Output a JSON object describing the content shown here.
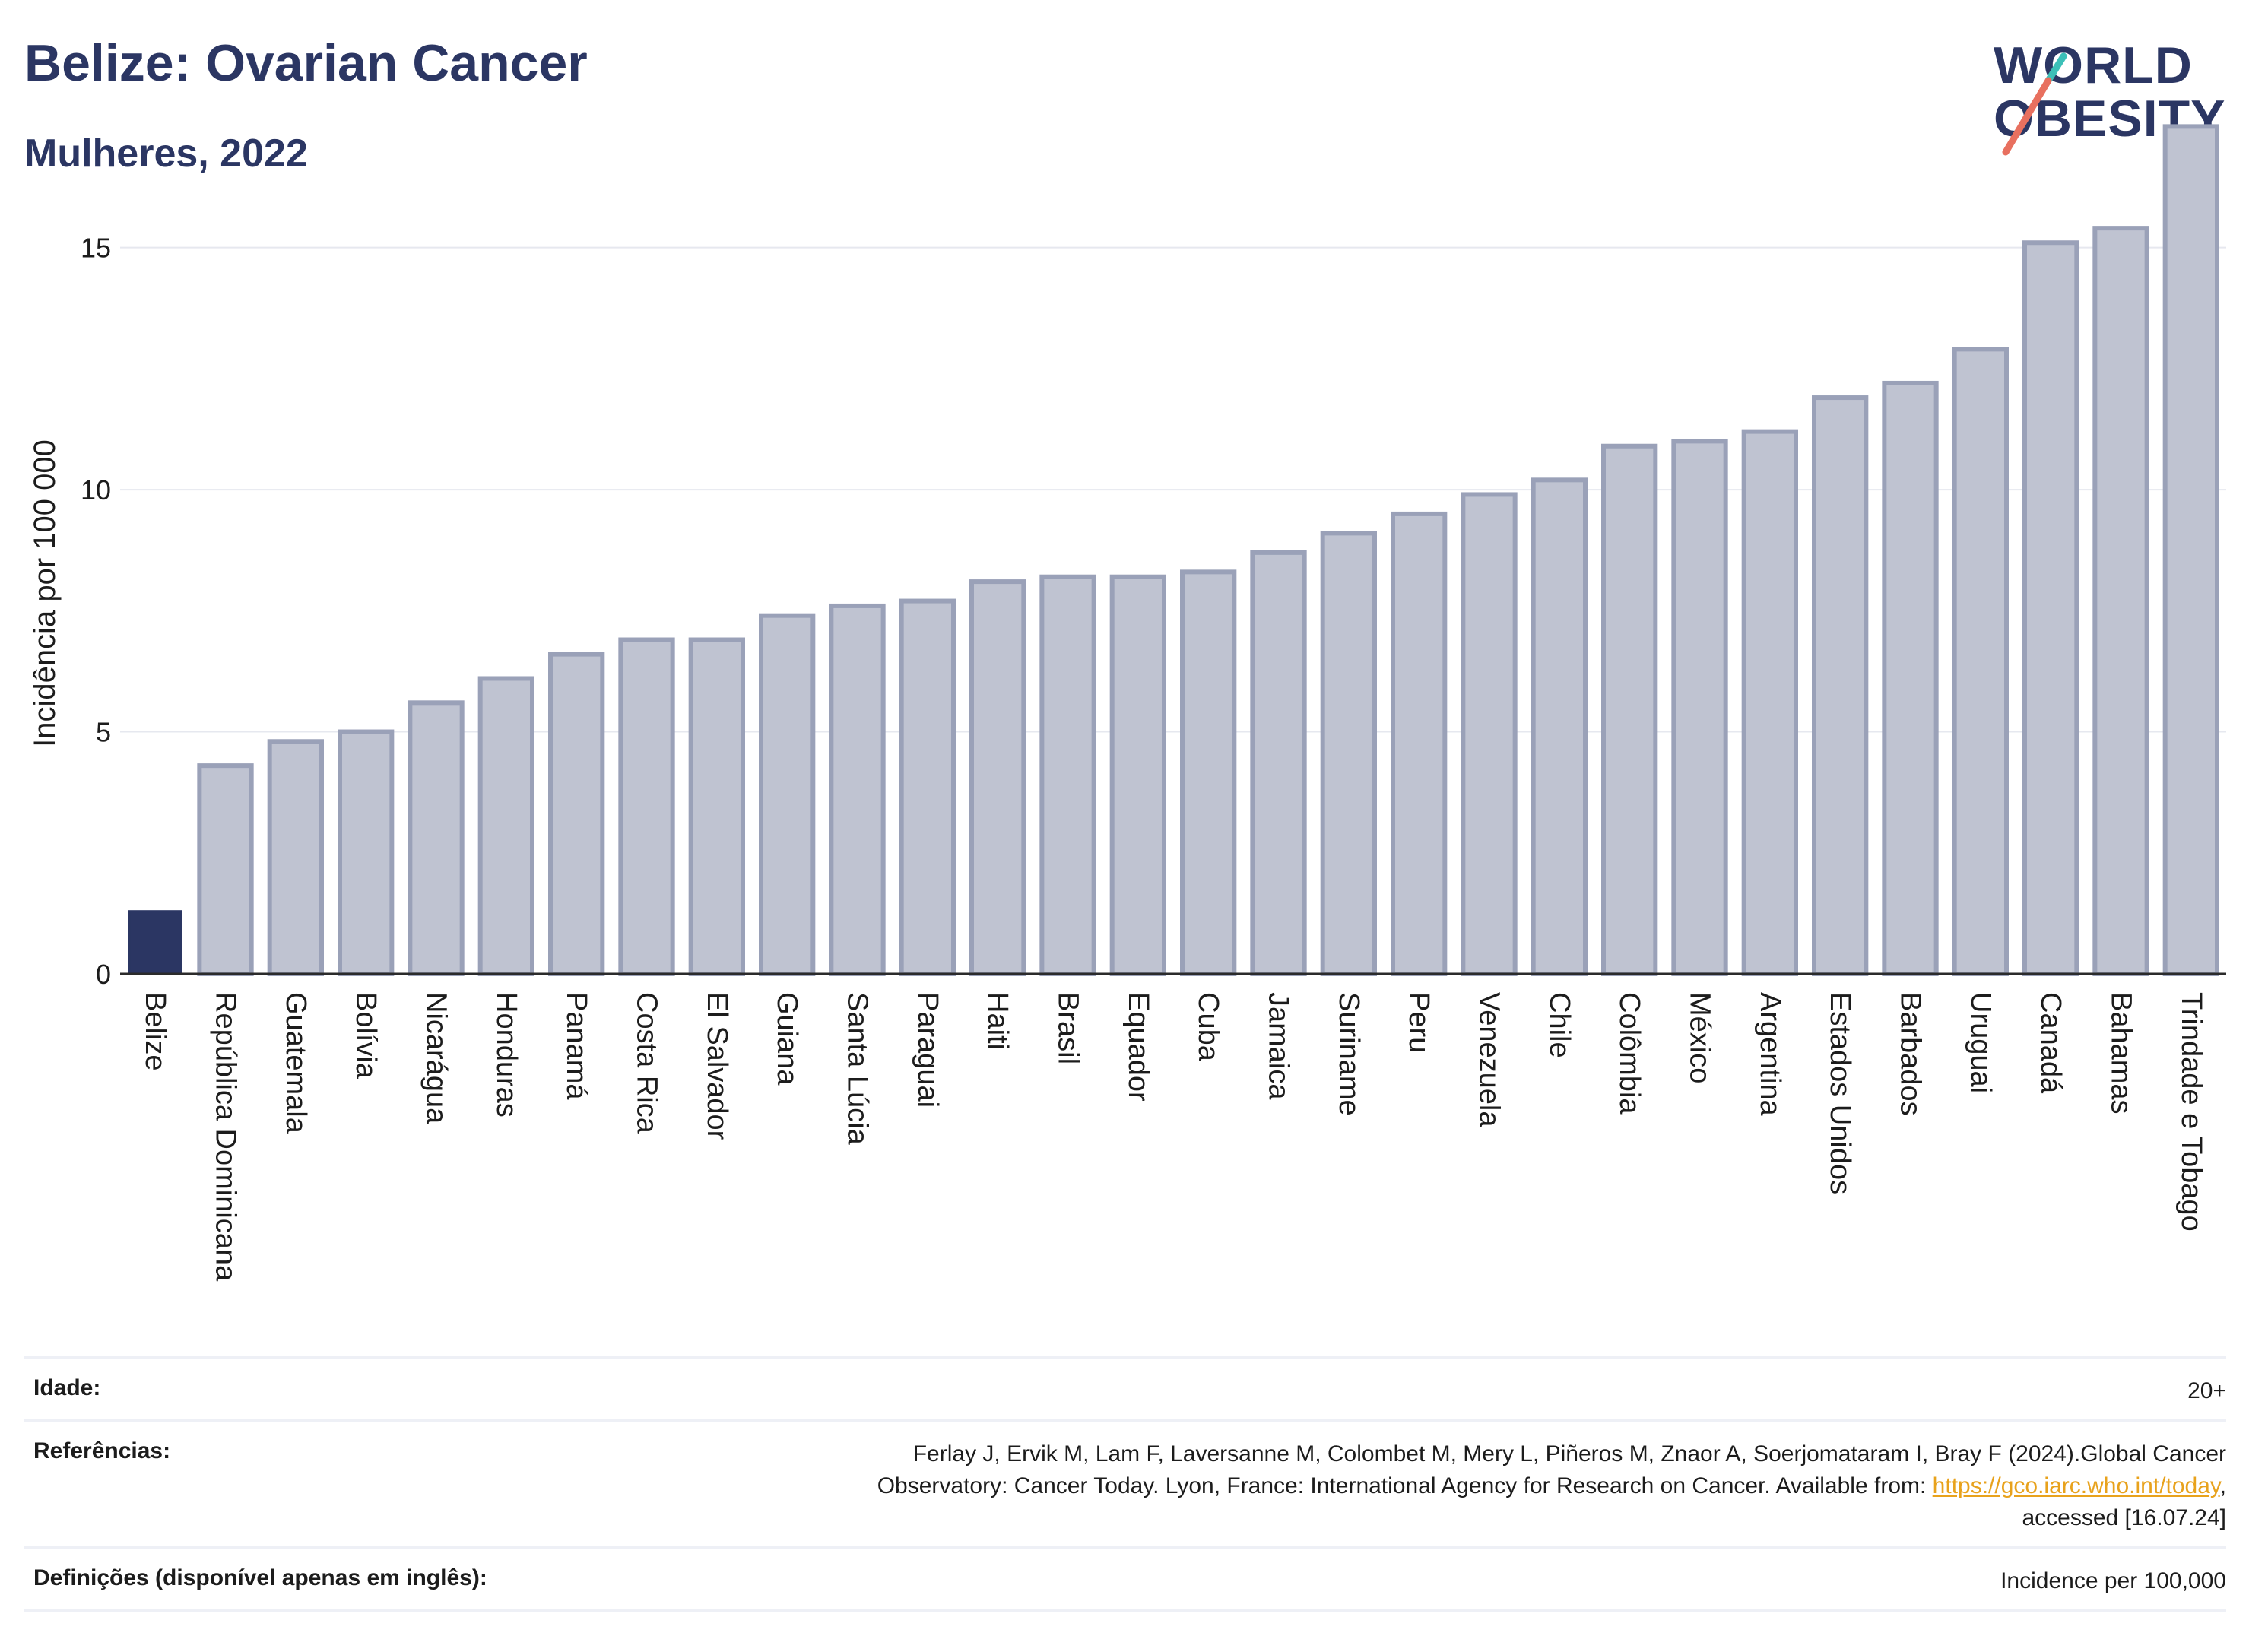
{
  "header": {
    "title": "Belize: Ovarian Cancer",
    "subtitle": "Mulheres, 2022",
    "logo_line1": "WORLD",
    "logo_line2": "OBESITY"
  },
  "colors": {
    "highlight_bar": "#2b3663",
    "other_bar": "#bfc3d1",
    "other_bar_stroke": "#9aa1b8",
    "title": "#2b3663",
    "logo_teal": "#3cc0b8",
    "logo_coral": "#e8705f"
  },
  "chart_data": {
    "type": "bar",
    "title": "",
    "xlabel": "",
    "ylabel": "Incidência por 100 000",
    "ylim": [
      0,
      17.6
    ],
    "yticks": [
      0,
      5,
      10,
      15
    ],
    "grid": true,
    "highlight": "Belize",
    "categories": [
      "Belize",
      "República Dominicana",
      "Guatemala",
      "Bolívia",
      "Nicarágua",
      "Honduras",
      "Panamá",
      "Costa Rica",
      "El Salvador",
      "Guiana",
      "Santa Lúcia",
      "Paraguai",
      "Haiti",
      "Brasil",
      "Equador",
      "Cuba",
      "Jamaica",
      "Suriname",
      "Peru",
      "Venezuela",
      "Chile",
      "Colômbia",
      "México",
      "Argentina",
      "Estados Unidos",
      "Barbados",
      "Uruguai",
      "Canadá",
      "Bahamas",
      "Trindade e Tobago"
    ],
    "values": [
      1.3,
      4.3,
      4.8,
      5.0,
      5.6,
      6.1,
      6.6,
      6.9,
      6.9,
      7.4,
      7.6,
      7.7,
      8.1,
      8.2,
      8.2,
      8.3,
      8.7,
      9.1,
      9.5,
      9.9,
      10.2,
      10.9,
      11.0,
      11.2,
      11.9,
      12.2,
      12.9,
      15.1,
      15.4,
      17.5
    ]
  },
  "footer": {
    "age_label": "Idade:",
    "age_value": "20+",
    "ref_label": "Referências:",
    "ref_text_1": "Ferlay J, Ervik M, Lam F, Laversanne M, Colombet M, Mery L, Piñeros M, Znaor A, Soerjomataram I, Bray F (2024).Global Cancer",
    "ref_text_2": "Observatory: Cancer Today. Lyon, France: International Agency for Research on Cancer. Available from: ",
    "ref_link": "https://gco.iarc.who.int/today",
    "ref_text_3": ",",
    "ref_text_4": "accessed [16.07.24]",
    "def_label": "Definições (disponível apenas em inglês):",
    "def_value": "Incidence per 100,000"
  }
}
